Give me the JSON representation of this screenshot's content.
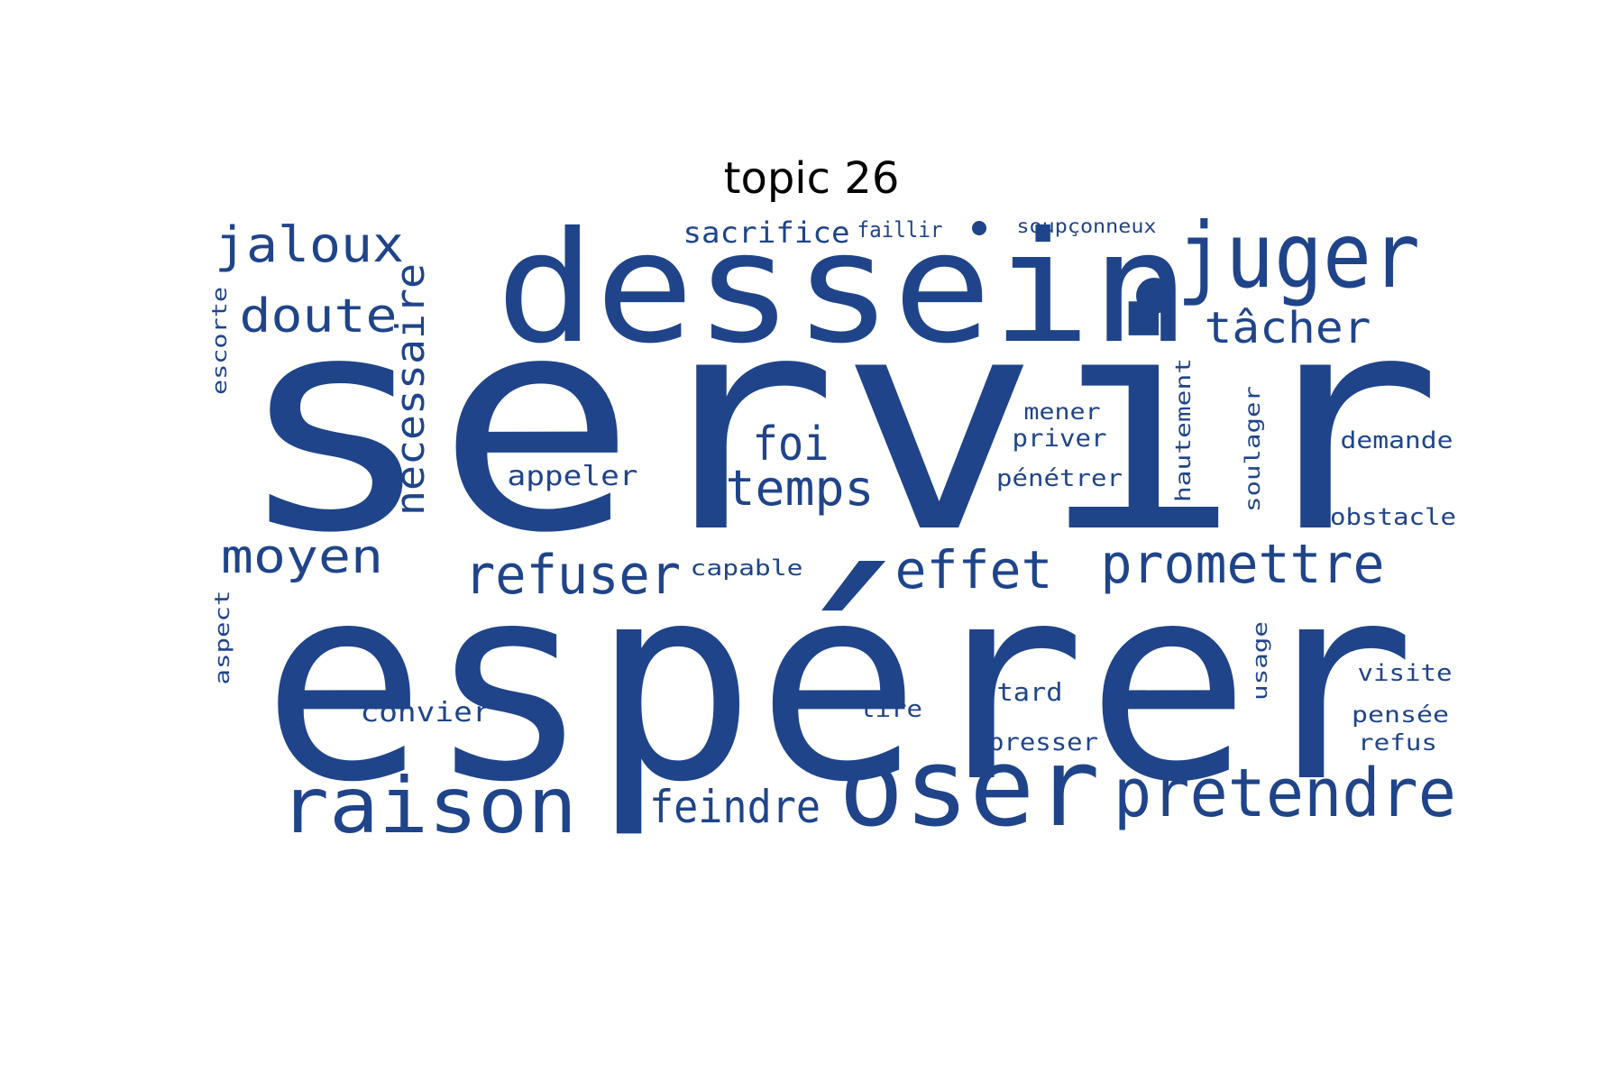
{
  "title": "topic 26",
  "word_color": "#1f448a",
  "words": [
    "servir",
    "espérer",
    "dessein",
    "juger",
    "oser",
    "raison",
    "prétendre",
    "promettre",
    "refuser",
    "effet",
    "temps",
    "foi",
    "feindre",
    "moyen",
    "doute",
    "jaloux",
    "nécessaire",
    "tâcher",
    "sacrifice",
    "faillir",
    "soupçonneux",
    "appeler",
    "capable",
    "convier",
    "lire",
    "tard",
    "presser",
    "mener",
    "priver",
    "pénétrer",
    "hautement",
    "soulager",
    "demande",
    "obstacle",
    "usage",
    "visite",
    "pensée",
    "refus",
    "escorte",
    "aspect"
  ]
}
